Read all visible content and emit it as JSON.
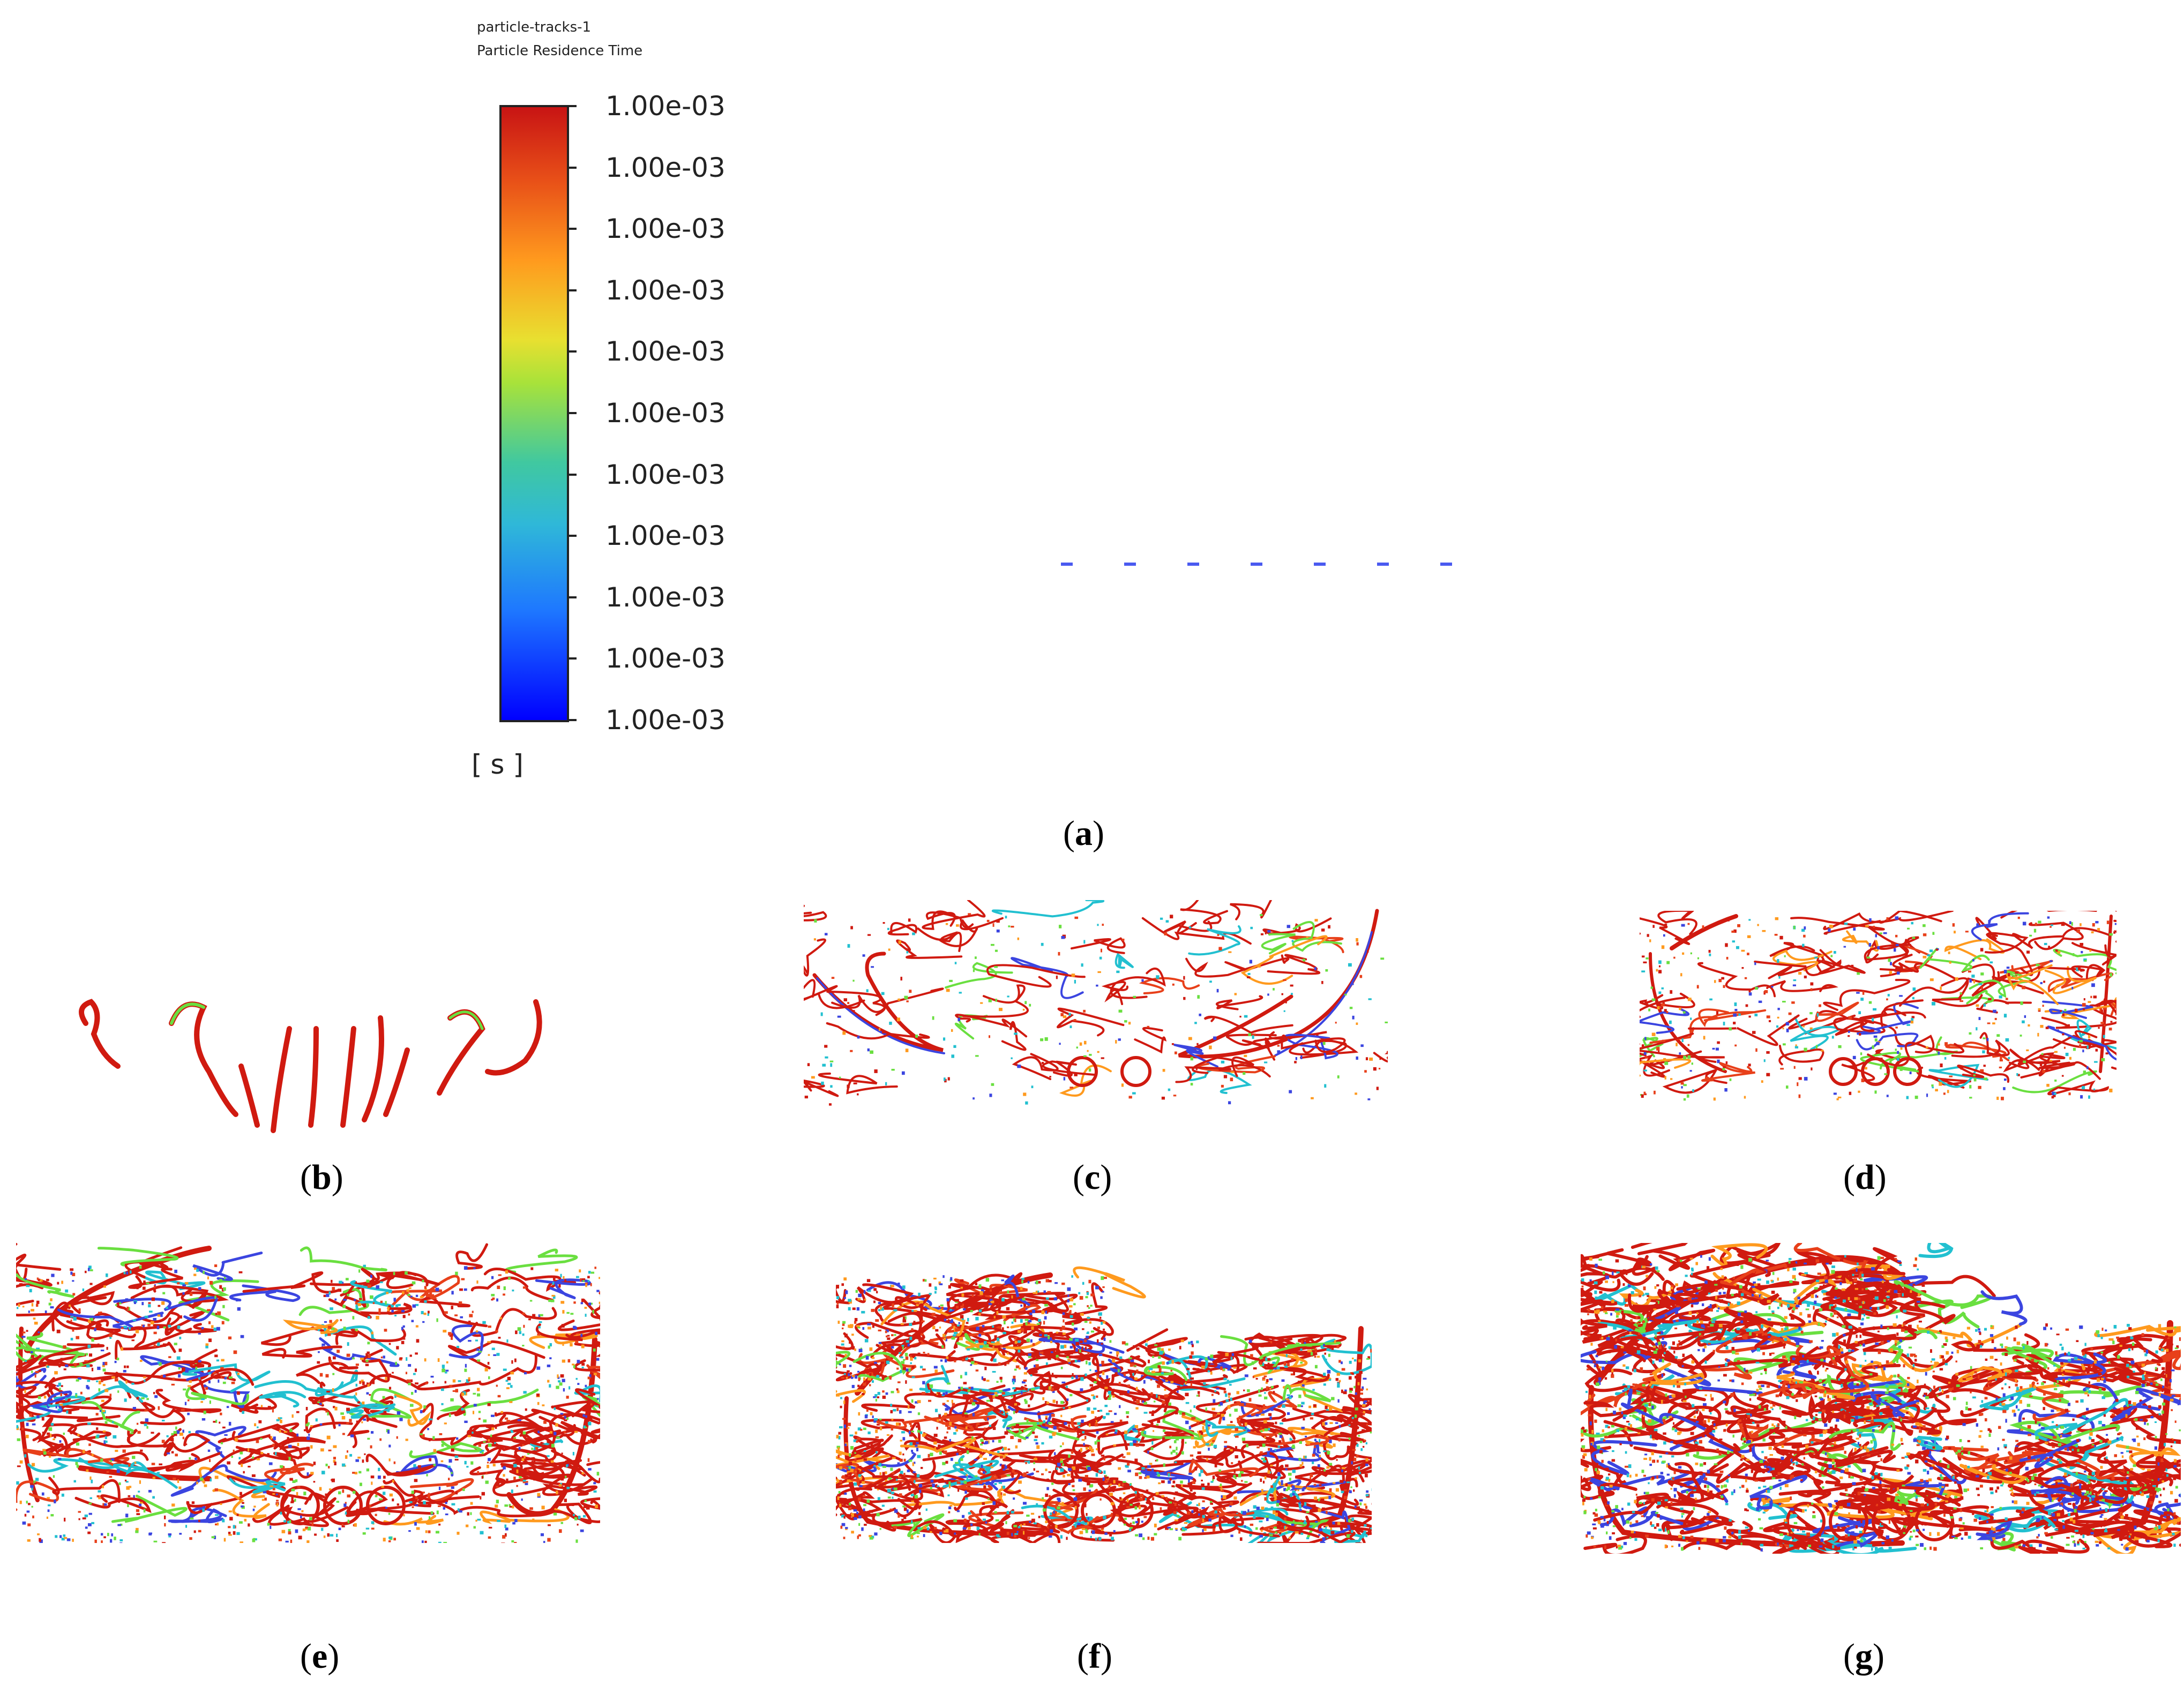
{
  "header": {
    "line1": "particle-tracks-1",
    "line2": "Particle Residence Time"
  },
  "colorbar": {
    "labels": [
      "1.00e-03",
      "1.00e-03",
      "1.00e-03",
      "1.00e-03",
      "1.00e-03",
      "1.00e-03",
      "1.00e-03",
      "1.00e-03",
      "1.00e-03",
      "1.00e-03",
      "1.00e-03"
    ],
    "unit": "[ s ]",
    "colors": {
      "top": "#c81414",
      "bottom": "#0000ff"
    }
  },
  "captions": [
    "a",
    "b",
    "c",
    "d",
    "e",
    "f",
    "g"
  ],
  "track_colors": [
    "#d01a10",
    "#e8401a",
    "#3b45e0",
    "#6adf40",
    "#ff9a1e",
    "#22c0d0"
  ]
}
